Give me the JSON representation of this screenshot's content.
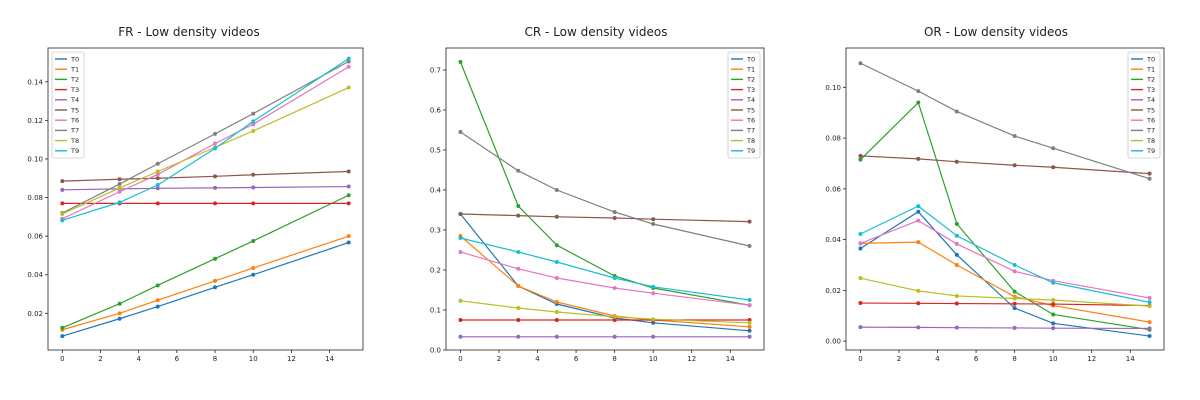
{
  "colors": [
    "#1f77b4",
    "#ff7f0e",
    "#2ca02c",
    "#d62728",
    "#9467bd",
    "#8c564b",
    "#e377c2",
    "#7f7f7f",
    "#bcbd22",
    "#17becf"
  ],
  "chart_data": [
    {
      "type": "line",
      "title": "FR - Low density videos",
      "xlabel": "",
      "ylabel": "",
      "xlim": [
        -0.75,
        15.75
      ],
      "ylim": [
        0.001,
        0.1575
      ],
      "xticks": [
        0,
        2,
        4,
        6,
        8,
        10,
        12,
        14
      ],
      "xtick_labels": [
        "0",
        "2",
        "4",
        "6",
        "8",
        "10",
        "12",
        "14"
      ],
      "yticks": [
        0.02,
        0.04,
        0.06,
        0.08,
        0.1,
        0.12,
        0.14
      ],
      "ytick_labels": [
        "0.02",
        "0.04",
        "0.06",
        "0.08",
        "0.10",
        "0.12",
        "0.14"
      ],
      "legend_position": "top-left",
      "grid": false,
      "x": [
        0,
        3,
        5,
        8,
        10,
        15
      ],
      "series": [
        {
          "name": "T0",
          "values": [
            0.0082,
            0.0172,
            0.0235,
            0.0335,
            0.04,
            0.0567
          ]
        },
        {
          "name": "T1",
          "values": [
            0.0115,
            0.02,
            0.0268,
            0.0368,
            0.0435,
            0.06
          ]
        },
        {
          "name": "T2",
          "values": [
            0.0125,
            0.025,
            0.0345,
            0.0483,
            0.0575,
            0.0812
          ]
        },
        {
          "name": "T3",
          "values": [
            0.077,
            0.077,
            0.077,
            0.077,
            0.077,
            0.077
          ]
        },
        {
          "name": "T4",
          "values": [
            0.084,
            0.0845,
            0.0848,
            0.085,
            0.0852,
            0.0857
          ]
        },
        {
          "name": "T5",
          "values": [
            0.0885,
            0.0895,
            0.09,
            0.091,
            0.0918,
            0.0935
          ]
        },
        {
          "name": "T6",
          "values": [
            0.069,
            0.083,
            0.092,
            0.108,
            0.118,
            0.1478
          ]
        },
        {
          "name": "T7",
          "values": [
            0.072,
            0.087,
            0.0975,
            0.113,
            0.1235,
            0.1505
          ]
        },
        {
          "name": "T8",
          "values": [
            0.0715,
            0.085,
            0.0935,
            0.106,
            0.1145,
            0.137
          ]
        },
        {
          "name": "T9",
          "values": [
            0.0682,
            0.0775,
            0.0865,
            0.1055,
            0.1195,
            0.152
          ]
        }
      ]
    },
    {
      "type": "line",
      "title": "CR - Low density videos",
      "xlabel": "",
      "ylabel": "",
      "xlim": [
        -0.75,
        15.75
      ],
      "ylim": [
        0.0,
        0.755
      ],
      "xticks": [
        0,
        2,
        4,
        6,
        8,
        10,
        12,
        14
      ],
      "xtick_labels": [
        "0",
        "2",
        "4",
        "6",
        "8",
        "10",
        "12",
        "14"
      ],
      "yticks": [
        0.0,
        0.1,
        0.2,
        0.3,
        0.4,
        0.5,
        0.6,
        0.7
      ],
      "ytick_labels": [
        "0.0",
        "0.1",
        "0.2",
        "0.3",
        "0.4",
        "0.5",
        "0.6",
        "0.7"
      ],
      "legend_position": "top-right",
      "grid": false,
      "x": [
        0,
        3,
        5,
        8,
        10,
        15
      ],
      "series": [
        {
          "name": "T0",
          "values": [
            0.34,
            0.16,
            0.115,
            0.08,
            0.068,
            0.048
          ]
        },
        {
          "name": "T1",
          "values": [
            0.285,
            0.16,
            0.12,
            0.085,
            0.075,
            0.058
          ]
        },
        {
          "name": "T2",
          "values": [
            0.72,
            0.36,
            0.262,
            0.185,
            0.155,
            0.112
          ]
        },
        {
          "name": "T3",
          "values": [
            0.075,
            0.075,
            0.075,
            0.075,
            0.075,
            0.075
          ]
        },
        {
          "name": "T4",
          "values": [
            0.033,
            0.033,
            0.033,
            0.033,
            0.033,
            0.033
          ]
        },
        {
          "name": "T5",
          "values": [
            0.34,
            0.336,
            0.333,
            0.33,
            0.327,
            0.321
          ]
        },
        {
          "name": "T6",
          "values": [
            0.245,
            0.203,
            0.18,
            0.155,
            0.142,
            0.112
          ]
        },
        {
          "name": "T7",
          "values": [
            0.545,
            0.448,
            0.4,
            0.345,
            0.315,
            0.26
          ]
        },
        {
          "name": "T8",
          "values": [
            0.123,
            0.105,
            0.095,
            0.083,
            0.077,
            0.068
          ]
        },
        {
          "name": "T9",
          "values": [
            0.28,
            0.245,
            0.22,
            0.18,
            0.158,
            0.125
          ]
        }
      ]
    },
    {
      "type": "line",
      "title": "OR - Low density videos",
      "xlabel": "",
      "ylabel": "",
      "xlim": [
        -0.75,
        15.75
      ],
      "ylim": [
        -0.0035,
        0.1155
      ],
      "xticks": [
        0,
        2,
        4,
        6,
        8,
        10,
        12,
        14
      ],
      "xtick_labels": [
        "0",
        "2",
        "4",
        "6",
        "8",
        "10",
        "12",
        "14"
      ],
      "yticks": [
        0.0,
        0.02,
        0.04,
        0.06,
        0.08,
        0.1
      ],
      "ytick_labels": [
        "0.00",
        "0.02",
        "0.04",
        "0.06",
        "0.08",
        "0.10"
      ],
      "legend_position": "top-right",
      "grid": false,
      "x": [
        0,
        3,
        5,
        8,
        10,
        15
      ],
      "series": [
        {
          "name": "T0",
          "values": [
            0.0365,
            0.051,
            0.034,
            0.013,
            0.007,
            0.002
          ]
        },
        {
          "name": "T1",
          "values": [
            0.0385,
            0.039,
            0.03,
            0.0175,
            0.014,
            0.0075
          ]
        },
        {
          "name": "T2",
          "values": [
            0.0715,
            0.094,
            0.0462,
            0.0195,
            0.0105,
            0.0045
          ]
        },
        {
          "name": "T3",
          "values": [
            0.015,
            0.0149,
            0.0148,
            0.0147,
            0.0146,
            0.014
          ]
        },
        {
          "name": "T4",
          "values": [
            0.0055,
            0.0054,
            0.0053,
            0.0052,
            0.0051,
            0.005
          ]
        },
        {
          "name": "T5",
          "values": [
            0.073,
            0.0718,
            0.0707,
            0.0693,
            0.0685,
            0.066
          ]
        },
        {
          "name": "T6",
          "values": [
            0.0385,
            0.0475,
            0.0383,
            0.0275,
            0.0238,
            0.017
          ]
        },
        {
          "name": "T7",
          "values": [
            0.1095,
            0.0985,
            0.0905,
            0.0808,
            0.076,
            0.064
          ]
        },
        {
          "name": "T8",
          "values": [
            0.0248,
            0.0198,
            0.0178,
            0.0168,
            0.0162,
            0.0138
          ]
        },
        {
          "name": "T9",
          "values": [
            0.0422,
            0.0532,
            0.0415,
            0.03,
            0.023,
            0.0153
          ]
        }
      ]
    }
  ]
}
